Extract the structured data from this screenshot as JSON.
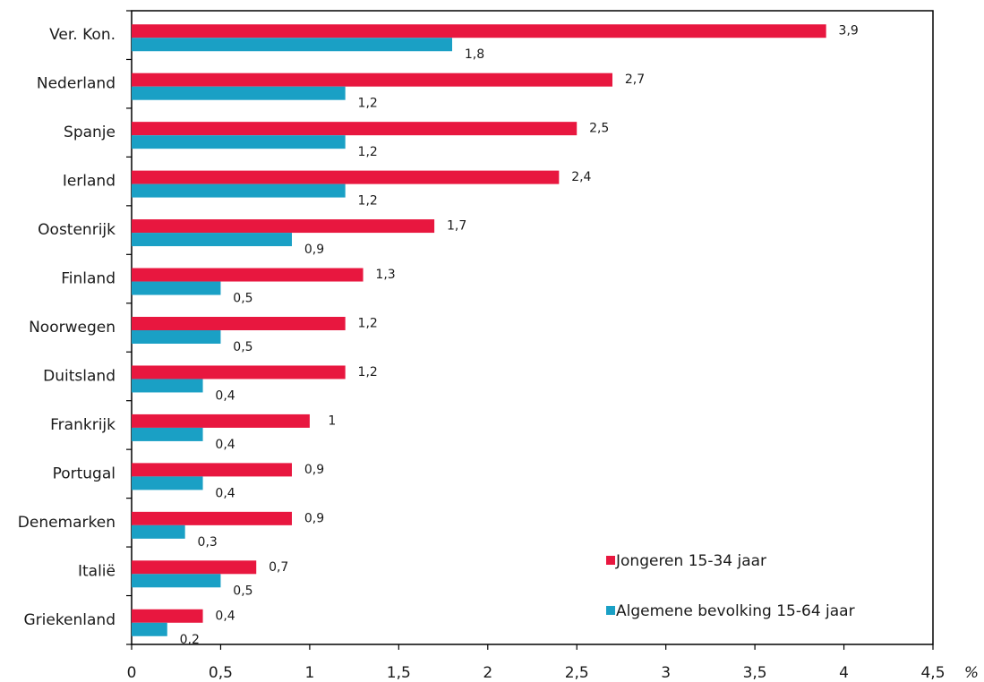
{
  "chart_data": {
    "type": "hbar",
    "categories": [
      "Ver. Kon.",
      "Nederland",
      "Spanje",
      "Ierland",
      "Oostenrijk",
      "Finland",
      "Noorwegen",
      "Duitsland",
      "Frankrijk",
      "Portugal",
      "Denemarken",
      "Italië",
      "Griekenland"
    ],
    "series": [
      {
        "name": "Jongeren 15-34 jaar",
        "color": "#e8173f",
        "values": [
          3.9,
          2.7,
          2.5,
          2.4,
          1.7,
          1.3,
          1.2,
          1.2,
          1,
          0.9,
          0.9,
          0.7,
          0.4
        ],
        "value_labels": [
          "3,9",
          "2,7",
          "2,5",
          "2,4",
          "1,7",
          "1,3",
          "1,2",
          "1,2",
          "1",
          "0,9",
          "0,9",
          "0,7",
          "0,4"
        ]
      },
      {
        "name": "Algemene bevolking 15-64 jaar",
        "color": "#1aa0c5",
        "values": [
          1.8,
          1.2,
          1.2,
          1.2,
          0.9,
          0.5,
          0.5,
          0.4,
          0.4,
          0.4,
          0.3,
          0.5,
          0.2
        ],
        "value_labels": [
          "1,8",
          "1,2",
          "1,2",
          "1,2",
          "0,9",
          "0,5",
          "0,5",
          "0,4",
          "0,4",
          "0,4",
          "0,3",
          "0,5",
          "0,2"
        ]
      }
    ],
    "xlabel": "%",
    "xlim": [
      0,
      4.5
    ],
    "xticks": [
      0,
      {
        "value": 0.5,
        "label": "0,5"
      },
      1,
      {
        "value": 1.5,
        "label": "1,5"
      },
      2,
      {
        "value": 2.5,
        "label": "2,5"
      },
      3,
      {
        "value": 3.5,
        "label": "3,5"
      },
      4,
      {
        "value": 4.5,
        "label": "4,5"
      }
    ],
    "legend": "lower right"
  }
}
